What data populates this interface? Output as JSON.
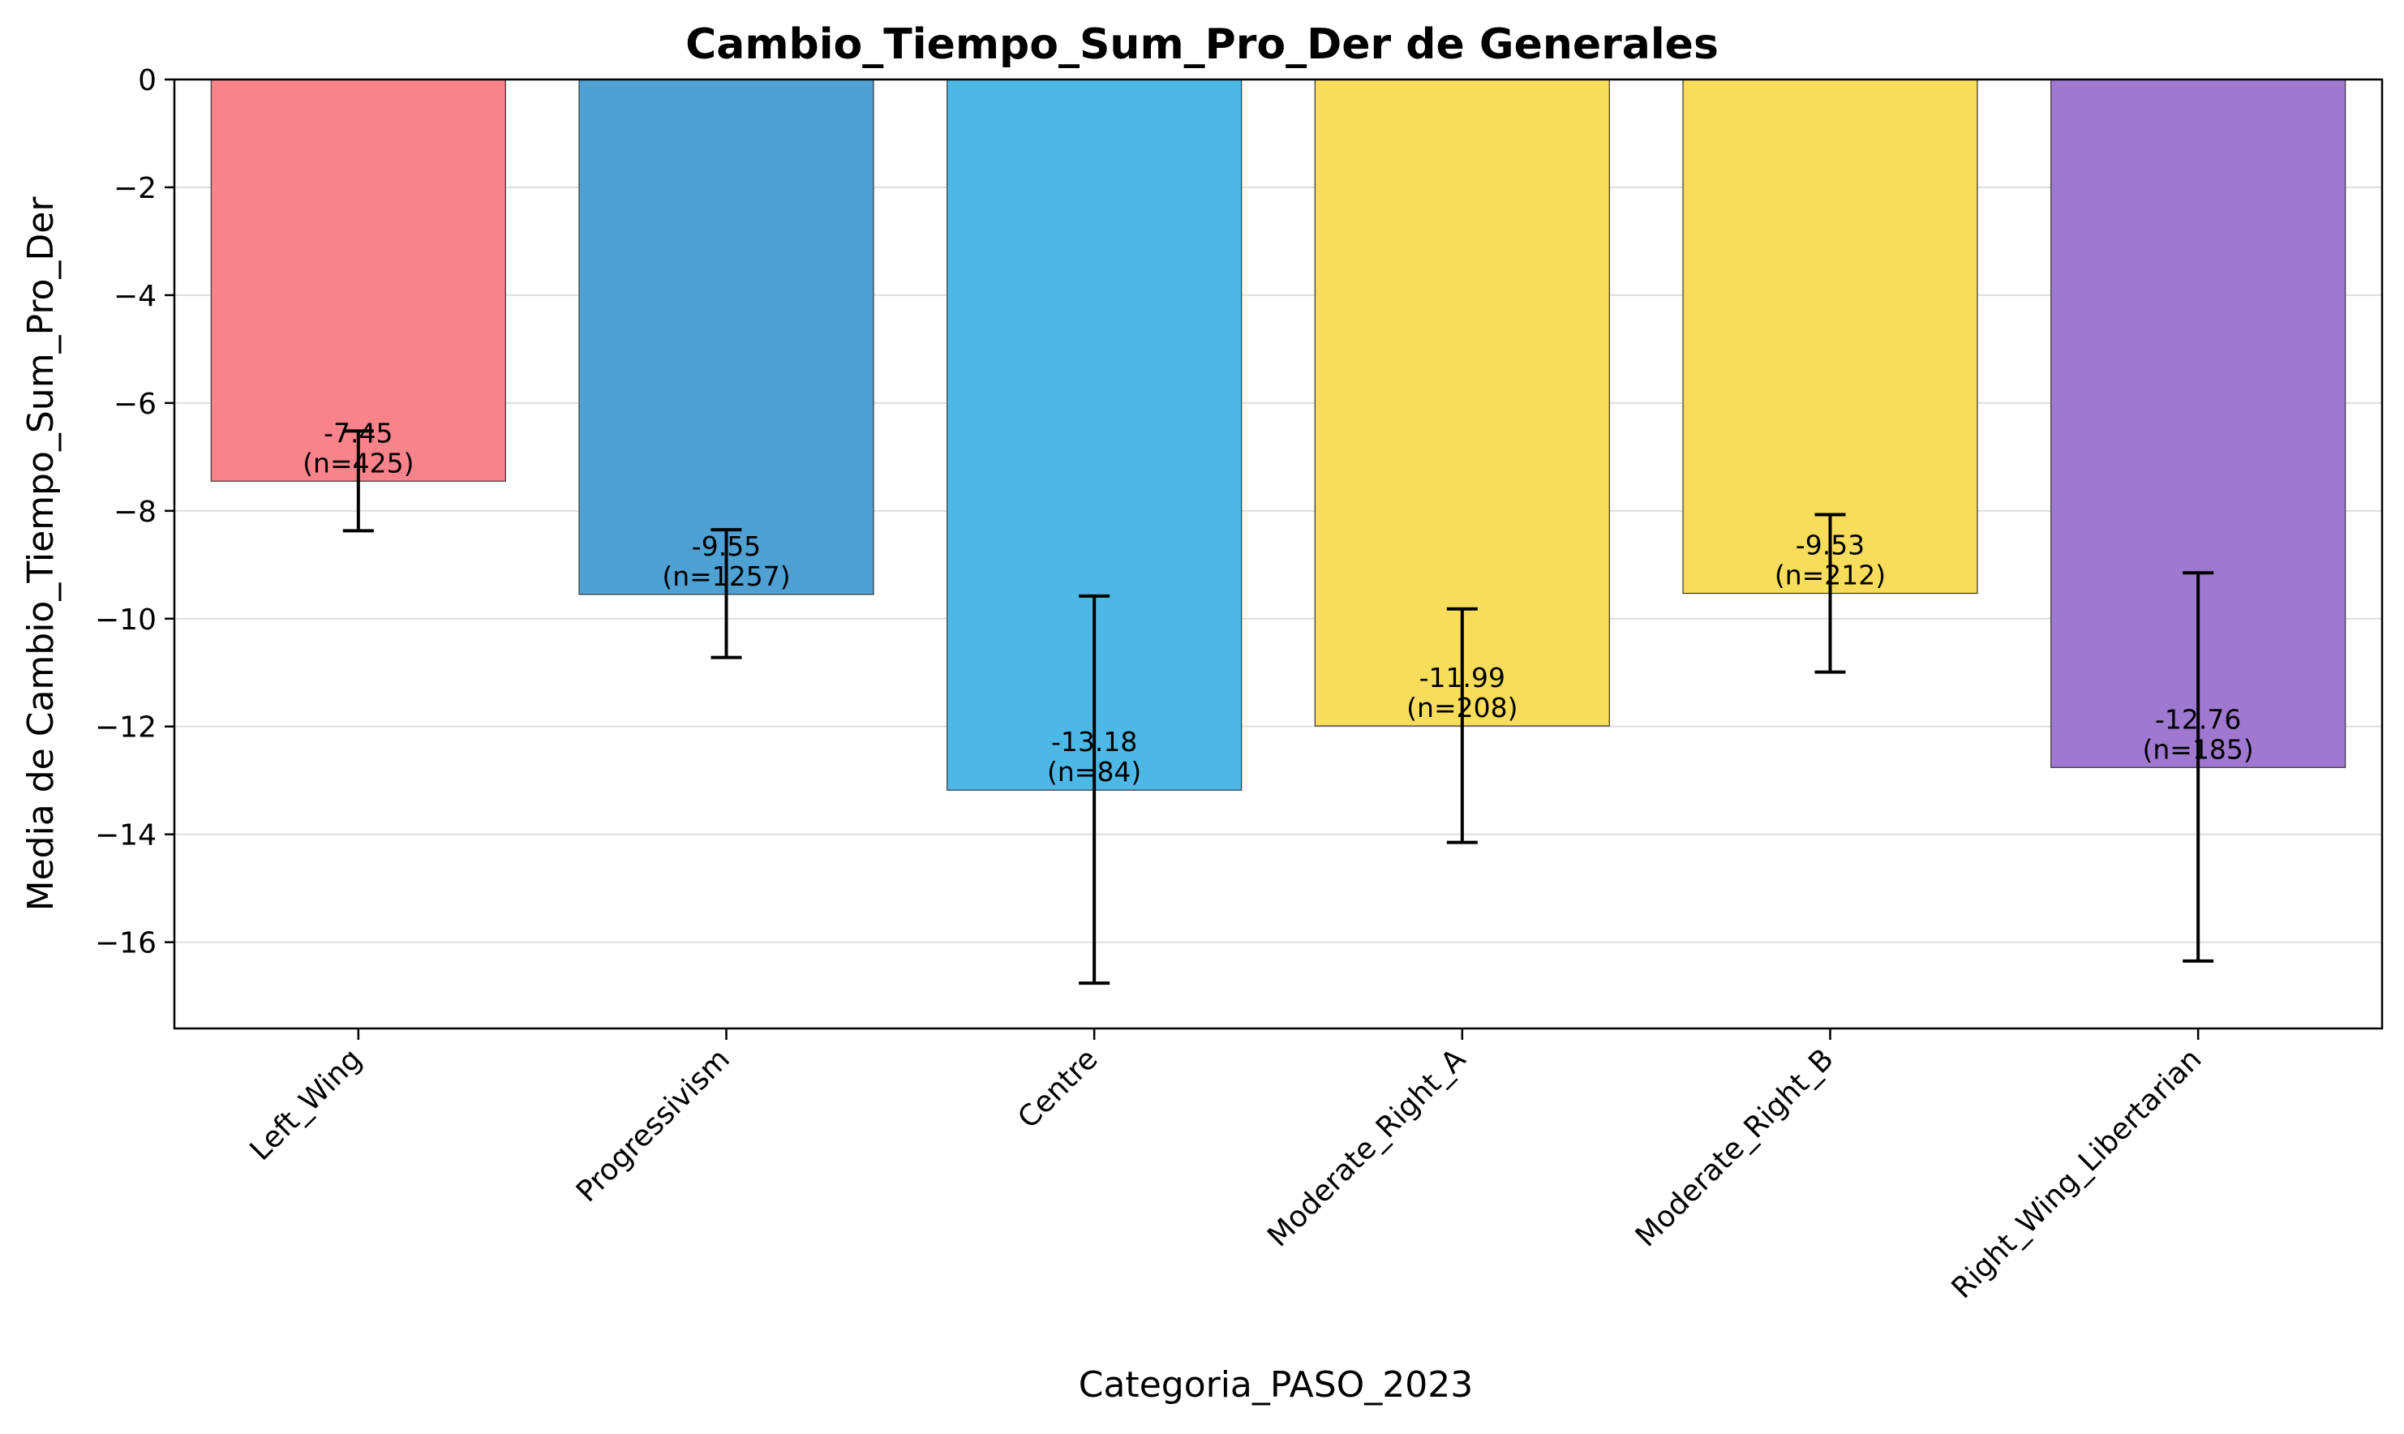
{
  "chart_data": {
    "type": "bar",
    "title": "Cambio_Tiempo_Sum_Pro_Der de Generales",
    "xlabel": "Categoria_PASO_2023",
    "ylabel": "Media de Cambio_Tiempo_Sum_Pro_Der",
    "ylim": [
      -17.6,
      0
    ],
    "yticks": [
      0,
      -2,
      -4,
      -6,
      -8,
      -10,
      -12,
      -14,
      -16
    ],
    "ytick_labels": [
      "0",
      "−2",
      "−4",
      "−6",
      "−8",
      "−10",
      "−12",
      "−14",
      "−16"
    ],
    "grid": "y",
    "categories": [
      "Left_Wing",
      "Progressivism",
      "Centre",
      "Moderate_Right_A",
      "Moderate_Right_B",
      "Right_Wing_Libertarian"
    ],
    "values": [
      -7.45,
      -9.55,
      -13.18,
      -11.99,
      -9.53,
      -12.76
    ],
    "error_low": [
      -8.37,
      -10.72,
      -16.76,
      -14.15,
      -10.99,
      -16.35
    ],
    "error_high": [
      -6.52,
      -8.35,
      -9.58,
      -9.82,
      -8.07,
      -9.15
    ],
    "n_labels": [
      "(n=425)",
      "(n=1257)",
      "(n=84)",
      "(n=208)",
      "(n=212)",
      "(n=185)"
    ],
    "value_labels": [
      "-7.45",
      "-9.55",
      "-13.18",
      "-11.99",
      "-9.53",
      "-12.76"
    ],
    "colors": [
      "#f8838a",
      "#4fa1d3",
      "#4db8e5",
      "#f8dd5c",
      "#f8dd5c",
      "#9f78d0"
    ]
  }
}
